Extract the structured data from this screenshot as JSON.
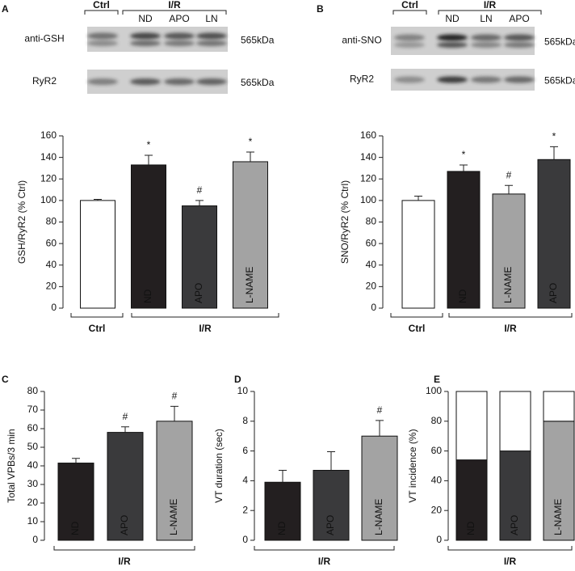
{
  "chart_data": [
    {
      "type": "bar",
      "panel": "A",
      "blot": {
        "ctrl": "Ctrl",
        "ir": "I/R",
        "lanes": [
          "ND",
          "APO",
          "LN"
        ],
        "rows": [
          {
            "label": "anti-GSH",
            "size": "565kDa"
          },
          {
            "label": "RyR2",
            "size": "565kDa"
          }
        ]
      },
      "ylabel": "GSH/RyR2 (% Ctrl)",
      "group_labels": [
        "Ctrl",
        "I/R"
      ],
      "categories": [
        null,
        "ND",
        "APO",
        "L-NAME"
      ],
      "values": [
        100,
        133,
        95,
        136
      ],
      "errors": [
        1,
        9,
        5,
        9
      ],
      "annotations": [
        null,
        "*",
        "#",
        "*"
      ],
      "colors": [
        "#ffffff",
        "#231f20",
        "#3a3a3c",
        "#a3a3a3"
      ],
      "ylim": [
        0,
        160
      ],
      "yticks": [
        0,
        20,
        40,
        60,
        80,
        100,
        120,
        140,
        160
      ]
    },
    {
      "type": "bar",
      "panel": "B",
      "blot": {
        "ctrl": "Ctrl",
        "ir": "I/R",
        "lanes": [
          "ND",
          "LN",
          "APO"
        ],
        "rows": [
          {
            "label": "anti-SNO",
            "size": "565kDa"
          },
          {
            "label": "RyR2",
            "size": "565kDa"
          }
        ]
      },
      "ylabel": "SNO/RyR2 (% Ctrl)",
      "group_labels": [
        "Ctrl",
        "I/R"
      ],
      "categories": [
        null,
        "ND",
        "L-NAME",
        "APO"
      ],
      "values": [
        100,
        127,
        106,
        138
      ],
      "errors": [
        4,
        6,
        8,
        12
      ],
      "annotations": [
        null,
        "*",
        "#",
        "*"
      ],
      "colors": [
        "#ffffff",
        "#231f20",
        "#a3a3a3",
        "#3a3a3c"
      ],
      "ylim": [
        0,
        160
      ],
      "yticks": [
        0,
        20,
        40,
        60,
        80,
        100,
        120,
        140,
        160
      ]
    },
    {
      "type": "bar",
      "panel": "C",
      "ylabel": "Total VPBs/3 min",
      "group_labels": [
        "I/R"
      ],
      "categories": [
        "ND",
        "APO",
        "L-NAME"
      ],
      "values": [
        41.5,
        58,
        64
      ],
      "errors": [
        2.5,
        3,
        8
      ],
      "annotations": [
        null,
        "#",
        "#"
      ],
      "colors": [
        "#231f20",
        "#3a3a3c",
        "#a3a3a3"
      ],
      "ylim": [
        0,
        80
      ],
      "yticks": [
        0,
        10,
        20,
        30,
        40,
        50,
        60,
        70,
        80
      ]
    },
    {
      "type": "bar",
      "panel": "D",
      "ylabel": "VT duration (sec)",
      "group_labels": [
        "I/R"
      ],
      "categories": [
        "ND",
        "APO",
        "L-NAME"
      ],
      "values": [
        3.9,
        4.7,
        7.0
      ],
      "errors": [
        0.8,
        1.25,
        1.05
      ],
      "annotations": [
        null,
        null,
        "#"
      ],
      "colors": [
        "#231f20",
        "#3a3a3c",
        "#a3a3a3"
      ],
      "ylim": [
        0,
        10
      ],
      "yticks": [
        0,
        2,
        4,
        6,
        8,
        10
      ]
    },
    {
      "type": "stacked_bar",
      "panel": "E",
      "ylabel": "VT incidence (%)",
      "group_labels": [
        "I/R"
      ],
      "categories": [
        "ND",
        "APO",
        "L-NAME"
      ],
      "series": [
        {
          "values": [
            54,
            60,
            80
          ],
          "colors": [
            "#231f20",
            "#3a3a3c",
            "#a3a3a3"
          ]
        },
        {
          "values": [
            46,
            40,
            20
          ],
          "color": "#ffffff"
        }
      ],
      "ylim": [
        0,
        100
      ],
      "yticks": [
        0,
        20,
        40,
        60,
        80,
        100
      ]
    }
  ]
}
